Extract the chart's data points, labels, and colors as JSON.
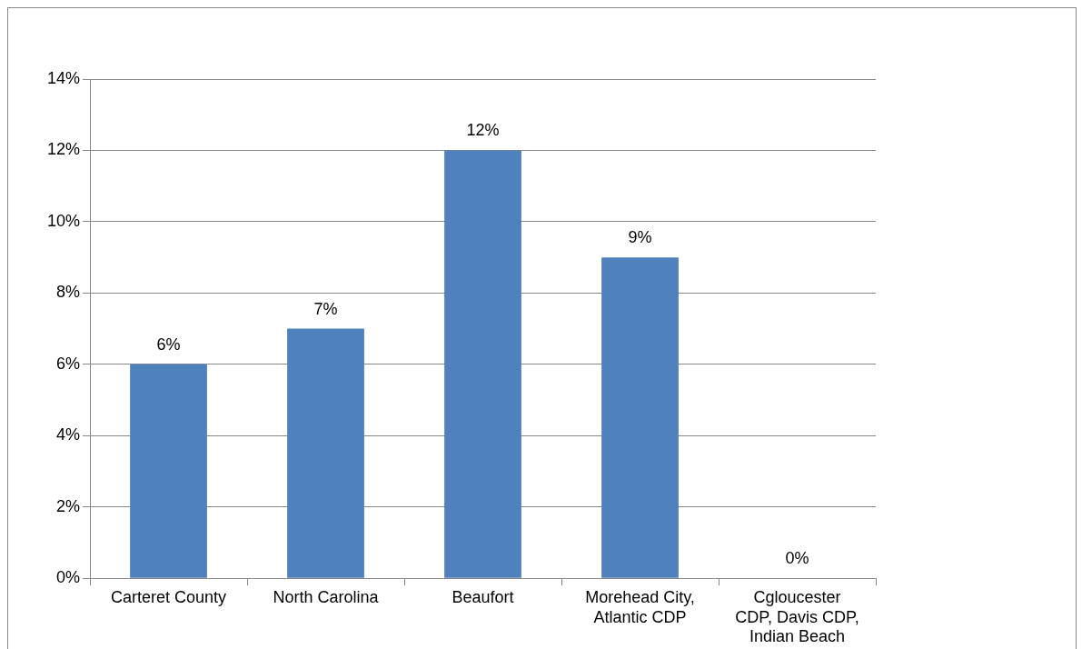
{
  "chart_data": {
    "type": "bar",
    "categories": [
      "Carteret County",
      "North Carolina",
      "Beaufort",
      "Morehead City, Atlantic CDP",
      "Cgloucester CDP, Davis CDP, Indian Beach"
    ],
    "values": [
      6,
      7,
      12,
      9,
      0
    ],
    "value_labels": [
      "6%",
      "7%",
      "12%",
      "9%",
      "0%"
    ],
    "color": "#4f81bd",
    "ylim": [
      0,
      14
    ],
    "yticks": [
      {
        "value": 0,
        "label": "0%"
      },
      {
        "value": 2,
        "label": "2%"
      },
      {
        "value": 4,
        "label": "4%"
      },
      {
        "value": 6,
        "label": "6%"
      },
      {
        "value": 8,
        "label": "8%"
      },
      {
        "value": 10,
        "label": "10%"
      },
      {
        "value": 12,
        "label": "12%"
      },
      {
        "value": 14,
        "label": "14%"
      }
    ],
    "grid": "y"
  }
}
